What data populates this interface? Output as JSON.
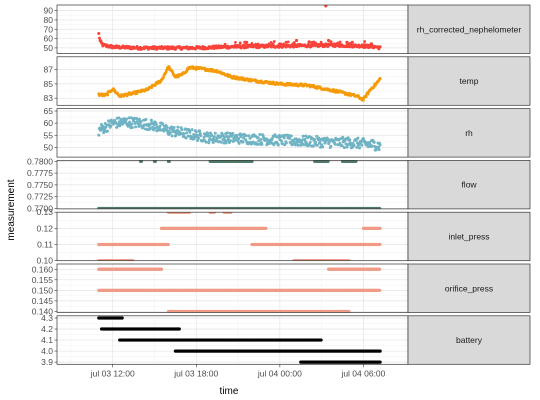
{
  "chart_data": {
    "type": "scatter",
    "layout": "faceted",
    "xlabel": "time",
    "ylabel": "measurement",
    "x_range": [
      "jul 03 08:00",
      "jul 04 09:10"
    ],
    "x_ticks": [
      {
        "label": "jul 03 12:00",
        "hours": 12
      },
      {
        "label": "jul 03 18:00",
        "hours": 18
      },
      {
        "label": "jul 04 00:00",
        "hours": 24
      },
      {
        "label": "jul 04 06:00",
        "hours": 30
      }
    ],
    "data_span_hours": [
      11.0,
      31.2
    ],
    "grid": true,
    "panels": [
      {
        "name": "rh_corrected_nephelometer",
        "color": "#f8423a",
        "ylim": [
          44,
          96
        ],
        "yticks": [
          50,
          60,
          70,
          80,
          90
        ],
        "points": [
          [
            11.0,
            65
          ],
          [
            11.1,
            57
          ],
          [
            11.3,
            53
          ],
          [
            12,
            51
          ],
          [
            14,
            50
          ],
          [
            16,
            50
          ],
          [
            18,
            50
          ],
          [
            20,
            51
          ],
          [
            22,
            51.5
          ],
          [
            24,
            52
          ],
          [
            26,
            52.5
          ],
          [
            27.5,
            58
          ],
          [
            28,
            53
          ],
          [
            30,
            52
          ],
          [
            31,
            51
          ],
          [
            31.2,
            50
          ],
          [
            27.3,
            95
          ],
          [
            25.2,
            58
          ],
          [
            26.1,
            56.5
          ],
          [
            29.2,
            56
          ]
        ]
      },
      {
        "name": "temp",
        "color": "#f59b0a",
        "ylim": [
          82,
          88.8
        ],
        "yticks": [
          83,
          85,
          87
        ],
        "points": [
          [
            11,
            83.5
          ],
          [
            11.5,
            83.4
          ],
          [
            12,
            84.3
          ],
          [
            12.5,
            83.3
          ],
          [
            13.5,
            83.7
          ],
          [
            14.5,
            84.2
          ],
          [
            15.5,
            85.5
          ],
          [
            16,
            87.4
          ],
          [
            16.5,
            86
          ],
          [
            17,
            86.3
          ],
          [
            17.5,
            87.3
          ],
          [
            18.5,
            87.1
          ],
          [
            19.5,
            86.8
          ],
          [
            20.5,
            86
          ],
          [
            22,
            85.5
          ],
          [
            24,
            85
          ],
          [
            26,
            84.8
          ],
          [
            28,
            84
          ],
          [
            29.5,
            83.3
          ],
          [
            30,
            82.8
          ],
          [
            30.5,
            84.2
          ],
          [
            31,
            85.2
          ],
          [
            31.2,
            85.7
          ]
        ]
      },
      {
        "name": "rh",
        "color": "#6fb3c4",
        "ylim": [
          46,
          66
        ],
        "yticks": [
          50,
          55,
          60,
          65
        ],
        "points": [
          [
            11,
            57
          ],
          [
            11.5,
            58.5
          ],
          [
            12,
            60
          ],
          [
            13,
            60.5
          ],
          [
            14,
            60
          ],
          [
            15,
            59
          ],
          [
            16,
            57
          ],
          [
            17,
            56
          ],
          [
            18,
            55
          ],
          [
            19,
            54
          ],
          [
            20,
            54
          ],
          [
            22,
            53.5
          ],
          [
            24,
            53
          ],
          [
            26,
            52.5
          ],
          [
            28,
            52
          ],
          [
            29,
            52
          ],
          [
            30,
            51.5
          ],
          [
            31,
            51
          ],
          [
            31.2,
            50.5
          ]
        ]
      },
      {
        "name": "flow",
        "color": "#4f7a67",
        "ylim": [
          0.7699,
          0.7802
        ],
        "yticks": [
          0.77,
          0.7725,
          0.775,
          0.7775,
          0.78
        ],
        "segments": [
          {
            "value": 0.77,
            "from": 11.0,
            "to": 31.2
          },
          {
            "value": 0.78,
            "from": 14.0,
            "to": 14.1
          },
          {
            "value": 0.78,
            "from": 15.0,
            "to": 15.1
          },
          {
            "value": 0.78,
            "from": 16.0,
            "to": 16.1
          },
          {
            "value": 0.78,
            "from": 19.0,
            "to": 22.0
          },
          {
            "value": 0.78,
            "from": 26.5,
            "to": 27.5
          },
          {
            "value": 0.78,
            "from": 28.5,
            "to": 29.5
          }
        ]
      },
      {
        "name": "inlet_press",
        "color": "#f09a87",
        "ylim": [
          0.1,
          0.13
        ],
        "yticks": [
          0.1,
          0.11,
          0.12,
          0.13
        ],
        "segments": [
          {
            "value": 0.13,
            "from": 16.0,
            "to": 17.5
          },
          {
            "value": 0.13,
            "from": 19.0,
            "to": 19.3
          },
          {
            "value": 0.13,
            "from": 20.0,
            "to": 20.5
          },
          {
            "value": 0.12,
            "from": 15.5,
            "to": 23.0
          },
          {
            "value": 0.12,
            "from": 30.0,
            "to": 31.2
          },
          {
            "value": 0.11,
            "from": 11.0,
            "to": 16.0
          },
          {
            "value": 0.11,
            "from": 22.0,
            "to": 31.2
          },
          {
            "value": 0.1,
            "from": 11.0,
            "to": 13.5
          },
          {
            "value": 0.1,
            "from": 25.0,
            "to": 29.0
          }
        ]
      },
      {
        "name": "orifice_press",
        "color": "#f09a87",
        "ylim": [
          0.1395,
          0.1625
        ],
        "yticks": [
          0.14,
          0.145,
          0.15,
          0.155,
          0.16
        ],
        "segments": [
          {
            "value": 0.16,
            "from": 11.0,
            "to": 15.5
          },
          {
            "value": 0.16,
            "from": 27.5,
            "to": 31.2
          },
          {
            "value": 0.15,
            "from": 11.0,
            "to": 31.2
          },
          {
            "value": 0.14,
            "from": 16.0,
            "to": 29.0
          }
        ]
      },
      {
        "name": "battery",
        "color": "#000000",
        "ylim": [
          3.88,
          4.32
        ],
        "yticks": [
          3.9,
          4.0,
          4.1,
          4.2,
          4.3
        ],
        "segments": [
          {
            "value": 4.3,
            "from": 11.0,
            "to": 12.7
          },
          {
            "value": 4.2,
            "from": 11.2,
            "to": 16.8
          },
          {
            "value": 4.1,
            "from": 12.5,
            "to": 27.0
          },
          {
            "value": 4.0,
            "from": 16.5,
            "to": 31.2
          },
          {
            "value": 3.9,
            "from": 25.5,
            "to": 31.2
          }
        ]
      }
    ]
  }
}
